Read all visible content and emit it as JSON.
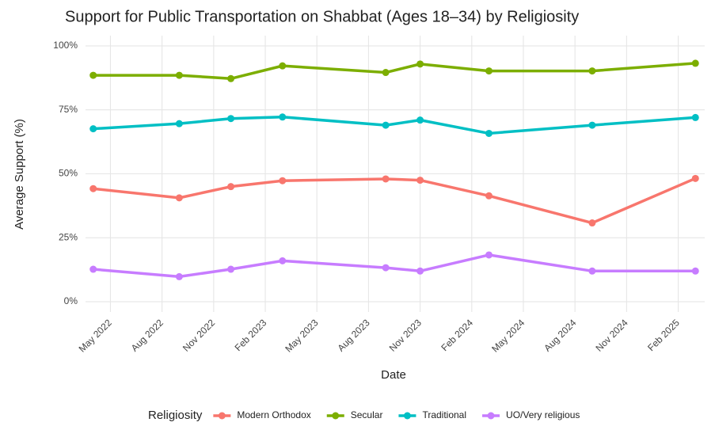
{
  "chart_data": {
    "type": "line",
    "title": "Support for Public Transportation on Shabbat (Ages 18–34) by Religiosity",
    "x_label": "Date",
    "y_label": "Average Support (%)",
    "legend_title": "Religiosity",
    "legend_position": "bottom",
    "grid": true,
    "x": [
      "2022-04",
      "2022-09",
      "2022-12",
      "2023-03",
      "2023-09",
      "2023-11",
      "2024-03",
      "2024-09",
      "2025-03"
    ],
    "xlim": [
      "2022-03",
      "2025-04"
    ],
    "xticks": [
      {
        "value": "2022-05",
        "label": "May 2022"
      },
      {
        "value": "2022-08",
        "label": "Aug 2022"
      },
      {
        "value": "2022-11",
        "label": "Nov 2022"
      },
      {
        "value": "2023-02",
        "label": "Feb 2023"
      },
      {
        "value": "2023-05",
        "label": "May 2023"
      },
      {
        "value": "2023-08",
        "label": "Aug 2023"
      },
      {
        "value": "2023-11",
        "label": "Nov 2023"
      },
      {
        "value": "2024-02",
        "label": "Feb 2024"
      },
      {
        "value": "2024-05",
        "label": "May 2024"
      },
      {
        "value": "2024-08",
        "label": "Aug 2024"
      },
      {
        "value": "2024-11",
        "label": "Nov 2024"
      },
      {
        "value": "2025-02",
        "label": "Feb 2025"
      }
    ],
    "ylim": [
      -4,
      104
    ],
    "yticks": [
      {
        "value": 0,
        "label": "0%"
      },
      {
        "value": 25,
        "label": "25%"
      },
      {
        "value": 50,
        "label": "50%"
      },
      {
        "value": 75,
        "label": "75%"
      },
      {
        "value": 100,
        "label": "100%"
      }
    ],
    "series": [
      {
        "name": "Modern Orthodox",
        "color": "#F8766D",
        "values": [
          44.2,
          40.6,
          45.0,
          47.3,
          48.0,
          47.5,
          41.4,
          30.8,
          48.2
        ]
      },
      {
        "name": "Secular",
        "color": "#7CAE00",
        "values": [
          88.5,
          88.5,
          87.2,
          92.2,
          89.6,
          92.9,
          90.2,
          90.2,
          93.2
        ]
      },
      {
        "name": "Traditional",
        "color": "#00BFC4",
        "values": [
          67.6,
          69.6,
          71.6,
          72.2,
          69.0,
          71.0,
          65.8,
          69.0,
          72.0
        ]
      },
      {
        "name": "UO/Very religious",
        "color": "#C77CFF",
        "values": [
          12.7,
          9.8,
          12.7,
          16.0,
          13.3,
          12.0,
          18.3,
          12.0,
          12.0
        ]
      }
    ]
  }
}
